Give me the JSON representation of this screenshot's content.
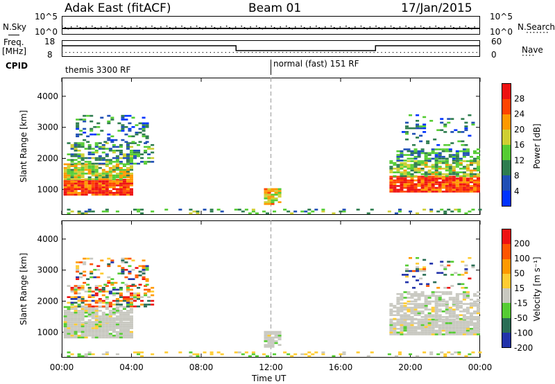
{
  "header": {
    "title": "Adak East (fitACF)",
    "beam": "Beam 01",
    "date": "17/Jan/2015"
  },
  "top_panels": {
    "nsky_label": "N.Sky",
    "nsky_ticks": [
      "10^5",
      "10^0"
    ],
    "nsearch_label": "N.Search",
    "nsearch_ticks": [
      "10^5",
      "10^0"
    ],
    "freq_label_1": "Freq.",
    "freq_label_2": "[MHz]",
    "freq_ticks": [
      "18",
      "8"
    ],
    "nave_label": "Nave",
    "nave_ticks": [
      "60",
      "0"
    ],
    "cpid_label": "CPID",
    "cpid_modes": [
      "themis 3300 RF",
      "normal (fast) 151 RF"
    ]
  },
  "chart_data": [
    {
      "type": "heatmap",
      "title": "",
      "xlabel": "Time UT",
      "ylabel": "Slant Range [km]",
      "xlim": [
        "00:00",
        "24:00"
      ],
      "ylim": [
        180,
        4600
      ],
      "x_ticks": [
        "00:00",
        "04:00",
        "08:00",
        "12:00",
        "16:00",
        "20:00",
        "00:00"
      ],
      "y_ticks": [
        1000,
        2000,
        3000,
        4000
      ],
      "colorbar_label": "Power [dB]",
      "colorbar_ticks": [
        "28",
        "24",
        "20",
        "16",
        "12",
        "8",
        "4"
      ],
      "colorbar_range": [
        0,
        30
      ],
      "colors": [
        "#0033ff",
        "#1f4fb5",
        "#2e7d4f",
        "#55cc33",
        "#cfcf33",
        "#ff9900",
        "#ff4400",
        "#ee1111"
      ]
    },
    {
      "type": "heatmap",
      "title": "",
      "xlabel": "Time UT",
      "ylabel": "Slant Range [km]",
      "xlim": [
        "00:00",
        "24:00"
      ],
      "ylim": [
        180,
        4600
      ],
      "x_ticks": [
        "00:00",
        "04:00",
        "08:00",
        "12:00",
        "16:00",
        "20:00",
        "00:00"
      ],
      "y_ticks": [
        1000,
        2000,
        3000,
        4000
      ],
      "colorbar_label": "Velocity [m s⁻¹]",
      "colorbar_ticks": [
        "200",
        "100",
        "50",
        "15",
        "-15",
        "-50",
        "-100",
        "-200"
      ],
      "colorbar_range": [
        -250,
        250
      ],
      "colors": [
        "#2233aa",
        "#2a6e55",
        "#55cc33",
        "#c8c8c0",
        "#ffcc33",
        "#ff9900",
        "#ff5500",
        "#ee1111"
      ]
    }
  ]
}
